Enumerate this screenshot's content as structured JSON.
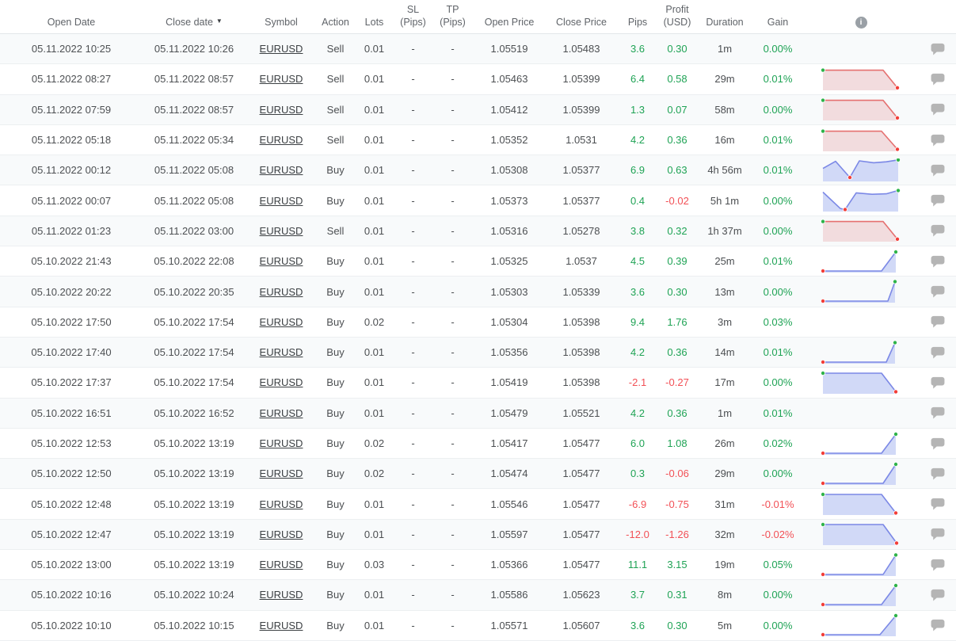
{
  "palette": {
    "green_text": "#1fa355",
    "red_text": "#f25056",
    "blue_line": "#7b88e6",
    "blue_fill": "#d1d9f7",
    "red_line": "#e57070",
    "red_fill": "#f2dcde",
    "dot_green": "#2fb34a",
    "dot_red": "#f23d38"
  },
  "header": {
    "columns": [
      {
        "id": "open-date",
        "label": "Open Date"
      },
      {
        "id": "close-date",
        "label": "Close date",
        "sort": "▼"
      },
      {
        "id": "symbol",
        "label": "Symbol"
      },
      {
        "id": "action",
        "label": "Action"
      },
      {
        "id": "lots",
        "label": "Lots"
      },
      {
        "id": "sl-pips",
        "label": "SL\n(Pips)"
      },
      {
        "id": "tp-pips",
        "label": "TP\n(Pips)"
      },
      {
        "id": "open-price",
        "label": "Open Price"
      },
      {
        "id": "close-price",
        "label": "Close Price"
      },
      {
        "id": "pips",
        "label": "Pips"
      },
      {
        "id": "profit-usd",
        "label": "Profit\n(USD)"
      },
      {
        "id": "duration",
        "label": "Duration"
      },
      {
        "id": "gain",
        "label": "Gain"
      },
      {
        "id": "chart",
        "label": "",
        "icon": "info-icon"
      },
      {
        "id": "comment",
        "label": ""
      }
    ]
  },
  "rows": [
    {
      "open_date": "05.11.2022 10:25",
      "close_date": "05.11.2022 10:26",
      "symbol": "EURUSD",
      "action": "Sell",
      "lots": "0.01",
      "sl": "-",
      "tp": "-",
      "open_price": "1.05519",
      "close_price": "1.05483",
      "pips": "3.6",
      "pips_color": "green",
      "profit": "0.30",
      "profit_color": "green",
      "duration": "1m",
      "gain": "0.00%",
      "gain_color": "green",
      "chart": null
    },
    {
      "open_date": "05.11.2022 08:27",
      "close_date": "05.11.2022 08:57",
      "symbol": "EURUSD",
      "action": "Sell",
      "lots": "0.01",
      "sl": "-",
      "tp": "-",
      "open_price": "1.05463",
      "close_price": "1.05399",
      "pips": "6.4",
      "pips_color": "green",
      "profit": "0.58",
      "profit_color": "green",
      "duration": "29m",
      "gain": "0.01%",
      "gain_color": "green",
      "chart": {
        "color": "red",
        "points": [
          [
            2,
            12
          ],
          [
            78,
            12
          ],
          [
            96,
            86
          ]
        ],
        "green_dot": [
          2,
          12
        ],
        "red_dot": [
          96,
          86
        ]
      }
    },
    {
      "open_date": "05.11.2022 07:59",
      "close_date": "05.11.2022 08:57",
      "symbol": "EURUSD",
      "action": "Sell",
      "lots": "0.01",
      "sl": "-",
      "tp": "-",
      "open_price": "1.05412",
      "close_price": "1.05399",
      "pips": "1.3",
      "pips_color": "green",
      "profit": "0.07",
      "profit_color": "green",
      "duration": "58m",
      "gain": "0.00%",
      "gain_color": "green",
      "chart": {
        "color": "red",
        "points": [
          [
            2,
            12
          ],
          [
            78,
            12
          ],
          [
            96,
            86
          ]
        ],
        "green_dot": [
          2,
          12
        ],
        "red_dot": [
          96,
          86
        ]
      }
    },
    {
      "open_date": "05.11.2022 05:18",
      "close_date": "05.11.2022 05:34",
      "symbol": "EURUSD",
      "action": "Sell",
      "lots": "0.01",
      "sl": "-",
      "tp": "-",
      "open_price": "1.05352",
      "close_price": "1.0531",
      "pips": "4.2",
      "pips_color": "green",
      "profit": "0.36",
      "profit_color": "green",
      "duration": "16m",
      "gain": "0.01%",
      "gain_color": "green",
      "chart": {
        "color": "red",
        "points": [
          [
            2,
            12
          ],
          [
            76,
            12
          ],
          [
            96,
            88
          ]
        ],
        "green_dot": [
          2,
          12
        ],
        "red_dot": [
          96,
          88
        ]
      }
    },
    {
      "open_date": "05.11.2022 00:12",
      "close_date": "05.11.2022 05:08",
      "symbol": "EURUSD",
      "action": "Buy",
      "lots": "0.01",
      "sl": "-",
      "tp": "-",
      "open_price": "1.05308",
      "close_price": "1.05377",
      "pips": "6.9",
      "pips_color": "green",
      "profit": "0.63",
      "profit_color": "green",
      "duration": "4h 56m",
      "gain": "0.01%",
      "gain_color": "green",
      "chart": {
        "color": "blue",
        "points": [
          [
            2,
            42
          ],
          [
            18,
            12
          ],
          [
            36,
            80
          ],
          [
            48,
            10
          ],
          [
            66,
            18
          ],
          [
            82,
            14
          ],
          [
            97,
            6
          ]
        ],
        "green_dot": [
          97,
          6
        ],
        "red_dot": [
          36,
          80
        ]
      }
    },
    {
      "open_date": "05.11.2022 00:07",
      "close_date": "05.11.2022 05:08",
      "symbol": "EURUSD",
      "action": "Buy",
      "lots": "0.01",
      "sl": "-",
      "tp": "-",
      "open_price": "1.05373",
      "close_price": "1.05377",
      "pips": "0.4",
      "pips_color": "green",
      "profit": "-0.02",
      "profit_color": "red",
      "duration": "5h 1m",
      "gain": "0.00%",
      "gain_color": "green",
      "chart": {
        "color": "blue",
        "points": [
          [
            2,
            15
          ],
          [
            24,
            84
          ],
          [
            30,
            88
          ],
          [
            44,
            18
          ],
          [
            64,
            24
          ],
          [
            82,
            22
          ],
          [
            97,
            8
          ]
        ],
        "green_dot": [
          97,
          8
        ],
        "red_dot": [
          30,
          88
        ]
      }
    },
    {
      "open_date": "05.11.2022 01:23",
      "close_date": "05.11.2022 03:00",
      "symbol": "EURUSD",
      "action": "Sell",
      "lots": "0.01",
      "sl": "-",
      "tp": "-",
      "open_price": "1.05316",
      "close_price": "1.05278",
      "pips": "3.8",
      "pips_color": "green",
      "profit": "0.32",
      "profit_color": "green",
      "duration": "1h 37m",
      "gain": "0.00%",
      "gain_color": "green",
      "chart": {
        "color": "red",
        "points": [
          [
            2,
            12
          ],
          [
            78,
            12
          ],
          [
            96,
            86
          ]
        ],
        "green_dot": [
          2,
          12
        ],
        "red_dot": [
          96,
          86
        ]
      }
    },
    {
      "open_date": "05.10.2022 21:43",
      "close_date": "05.10.2022 22:08",
      "symbol": "EURUSD",
      "action": "Buy",
      "lots": "0.01",
      "sl": "-",
      "tp": "-",
      "open_price": "1.05325",
      "close_price": "1.0537",
      "pips": "4.5",
      "pips_color": "green",
      "profit": "0.39",
      "profit_color": "green",
      "duration": "25m",
      "gain": "0.01%",
      "gain_color": "green",
      "chart": {
        "color": "blue",
        "points": [
          [
            2,
            90
          ],
          [
            76,
            90
          ],
          [
            94,
            10
          ]
        ],
        "green_dot": [
          94,
          10
        ],
        "red_dot": [
          2,
          90
        ]
      }
    },
    {
      "open_date": "05.10.2022 20:22",
      "close_date": "05.10.2022 20:35",
      "symbol": "EURUSD",
      "action": "Buy",
      "lots": "0.01",
      "sl": "-",
      "tp": "-",
      "open_price": "1.05303",
      "close_price": "1.05339",
      "pips": "3.6",
      "pips_color": "green",
      "profit": "0.30",
      "profit_color": "green",
      "duration": "13m",
      "gain": "0.00%",
      "gain_color": "green",
      "chart": {
        "color": "blue",
        "points": [
          [
            2,
            90
          ],
          [
            84,
            90
          ],
          [
            93,
            8
          ]
        ],
        "green_dot": [
          93,
          8
        ],
        "red_dot": [
          2,
          90
        ]
      }
    },
    {
      "open_date": "05.10.2022 17:50",
      "close_date": "05.10.2022 17:54",
      "symbol": "EURUSD",
      "action": "Buy",
      "lots": "0.02",
      "sl": "-",
      "tp": "-",
      "open_price": "1.05304",
      "close_price": "1.05398",
      "pips": "9.4",
      "pips_color": "green",
      "profit": "1.76",
      "profit_color": "green",
      "duration": "3m",
      "gain": "0.03%",
      "gain_color": "green",
      "chart": null
    },
    {
      "open_date": "05.10.2022 17:40",
      "close_date": "05.10.2022 17:54",
      "symbol": "EURUSD",
      "action": "Buy",
      "lots": "0.01",
      "sl": "-",
      "tp": "-",
      "open_price": "1.05356",
      "close_price": "1.05398",
      "pips": "4.2",
      "pips_color": "green",
      "profit": "0.36",
      "profit_color": "green",
      "duration": "14m",
      "gain": "0.01%",
      "gain_color": "green",
      "chart": {
        "color": "blue",
        "points": [
          [
            2,
            90
          ],
          [
            82,
            90
          ],
          [
            93,
            8
          ]
        ],
        "green_dot": [
          93,
          8
        ],
        "red_dot": [
          2,
          90
        ]
      }
    },
    {
      "open_date": "05.10.2022 17:37",
      "close_date": "05.10.2022 17:54",
      "symbol": "EURUSD",
      "action": "Buy",
      "lots": "0.01",
      "sl": "-",
      "tp": "-",
      "open_price": "1.05419",
      "close_price": "1.05398",
      "pips": "-2.1",
      "pips_color": "red",
      "profit": "-0.27",
      "profit_color": "red",
      "duration": "17m",
      "gain": "0.00%",
      "gain_color": "green",
      "chart": {
        "color": "blue",
        "points": [
          [
            2,
            10
          ],
          [
            76,
            10
          ],
          [
            94,
            88
          ]
        ],
        "green_dot": [
          2,
          10
        ],
        "red_dot": [
          94,
          88
        ]
      }
    },
    {
      "open_date": "05.10.2022 16:51",
      "close_date": "05.10.2022 16:52",
      "symbol": "EURUSD",
      "action": "Buy",
      "lots": "0.01",
      "sl": "-",
      "tp": "-",
      "open_price": "1.05479",
      "close_price": "1.05521",
      "pips": "4.2",
      "pips_color": "green",
      "profit": "0.36",
      "profit_color": "green",
      "duration": "1m",
      "gain": "0.01%",
      "gain_color": "green",
      "chart": null
    },
    {
      "open_date": "05.10.2022 12:53",
      "close_date": "05.10.2022 13:19",
      "symbol": "EURUSD",
      "action": "Buy",
      "lots": "0.02",
      "sl": "-",
      "tp": "-",
      "open_price": "1.05417",
      "close_price": "1.05477",
      "pips": "6.0",
      "pips_color": "green",
      "profit": "1.08",
      "profit_color": "green",
      "duration": "26m",
      "gain": "0.02%",
      "gain_color": "green",
      "chart": {
        "color": "blue",
        "points": [
          [
            2,
            90
          ],
          [
            76,
            90
          ],
          [
            94,
            10
          ]
        ],
        "green_dot": [
          94,
          10
        ],
        "red_dot": [
          2,
          90
        ]
      }
    },
    {
      "open_date": "05.10.2022 12:50",
      "close_date": "05.10.2022 13:19",
      "symbol": "EURUSD",
      "action": "Buy",
      "lots": "0.02",
      "sl": "-",
      "tp": "-",
      "open_price": "1.05474",
      "close_price": "1.05477",
      "pips": "0.3",
      "pips_color": "green",
      "profit": "-0.06",
      "profit_color": "red",
      "duration": "29m",
      "gain": "0.00%",
      "gain_color": "green",
      "chart": {
        "color": "blue",
        "points": [
          [
            2,
            90
          ],
          [
            78,
            90
          ],
          [
            94,
            10
          ]
        ],
        "green_dot": [
          94,
          10
        ],
        "red_dot": [
          2,
          90
        ]
      }
    },
    {
      "open_date": "05.10.2022 12:48",
      "close_date": "05.10.2022 13:19",
      "symbol": "EURUSD",
      "action": "Buy",
      "lots": "0.01",
      "sl": "-",
      "tp": "-",
      "open_price": "1.05546",
      "close_price": "1.05477",
      "pips": "-6.9",
      "pips_color": "red",
      "profit": "-0.75",
      "profit_color": "red",
      "duration": "31m",
      "gain": "-0.01%",
      "gain_color": "red",
      "chart": {
        "color": "blue",
        "points": [
          [
            2,
            10
          ],
          [
            76,
            10
          ],
          [
            94,
            88
          ]
        ],
        "green_dot": [
          2,
          10
        ],
        "red_dot": [
          94,
          88
        ]
      }
    },
    {
      "open_date": "05.10.2022 12:47",
      "close_date": "05.10.2022 13:19",
      "symbol": "EURUSD",
      "action": "Buy",
      "lots": "0.01",
      "sl": "-",
      "tp": "-",
      "open_price": "1.05597",
      "close_price": "1.05477",
      "pips": "-12.0",
      "pips_color": "red",
      "profit": "-1.26",
      "profit_color": "red",
      "duration": "32m",
      "gain": "-0.02%",
      "gain_color": "red",
      "chart": {
        "color": "blue",
        "points": [
          [
            2,
            10
          ],
          [
            78,
            10
          ],
          [
            95,
            88
          ]
        ],
        "green_dot": [
          2,
          10
        ],
        "red_dot": [
          95,
          88
        ]
      }
    },
    {
      "open_date": "05.10.2022 13:00",
      "close_date": "05.10.2022 13:19",
      "symbol": "EURUSD",
      "action": "Buy",
      "lots": "0.03",
      "sl": "-",
      "tp": "-",
      "open_price": "1.05366",
      "close_price": "1.05477",
      "pips": "11.1",
      "pips_color": "green",
      "profit": "3.15",
      "profit_color": "green",
      "duration": "19m",
      "gain": "0.05%",
      "gain_color": "green",
      "chart": {
        "color": "blue",
        "points": [
          [
            2,
            90
          ],
          [
            78,
            90
          ],
          [
            94,
            8
          ]
        ],
        "green_dot": [
          94,
          8
        ],
        "red_dot": [
          2,
          90
        ]
      }
    },
    {
      "open_date": "05.10.2022 10:16",
      "close_date": "05.10.2022 10:24",
      "symbol": "EURUSD",
      "action": "Buy",
      "lots": "0.01",
      "sl": "-",
      "tp": "-",
      "open_price": "1.05586",
      "close_price": "1.05623",
      "pips": "3.7",
      "pips_color": "green",
      "profit": "0.31",
      "profit_color": "green",
      "duration": "8m",
      "gain": "0.00%",
      "gain_color": "green",
      "chart": {
        "color": "blue",
        "points": [
          [
            2,
            90
          ],
          [
            76,
            90
          ],
          [
            94,
            10
          ]
        ],
        "green_dot": [
          94,
          10
        ],
        "red_dot": [
          2,
          90
        ]
      }
    },
    {
      "open_date": "05.10.2022 10:10",
      "close_date": "05.10.2022 10:15",
      "symbol": "EURUSD",
      "action": "Buy",
      "lots": "0.01",
      "sl": "-",
      "tp": "-",
      "open_price": "1.05571",
      "close_price": "1.05607",
      "pips": "3.6",
      "pips_color": "green",
      "profit": "0.30",
      "profit_color": "green",
      "duration": "5m",
      "gain": "0.00%",
      "gain_color": "green",
      "chart": {
        "color": "blue",
        "points": [
          [
            2,
            90
          ],
          [
            74,
            90
          ],
          [
            94,
            10
          ]
        ],
        "green_dot": [
          94,
          10
        ],
        "red_dot": [
          2,
          90
        ]
      }
    }
  ]
}
